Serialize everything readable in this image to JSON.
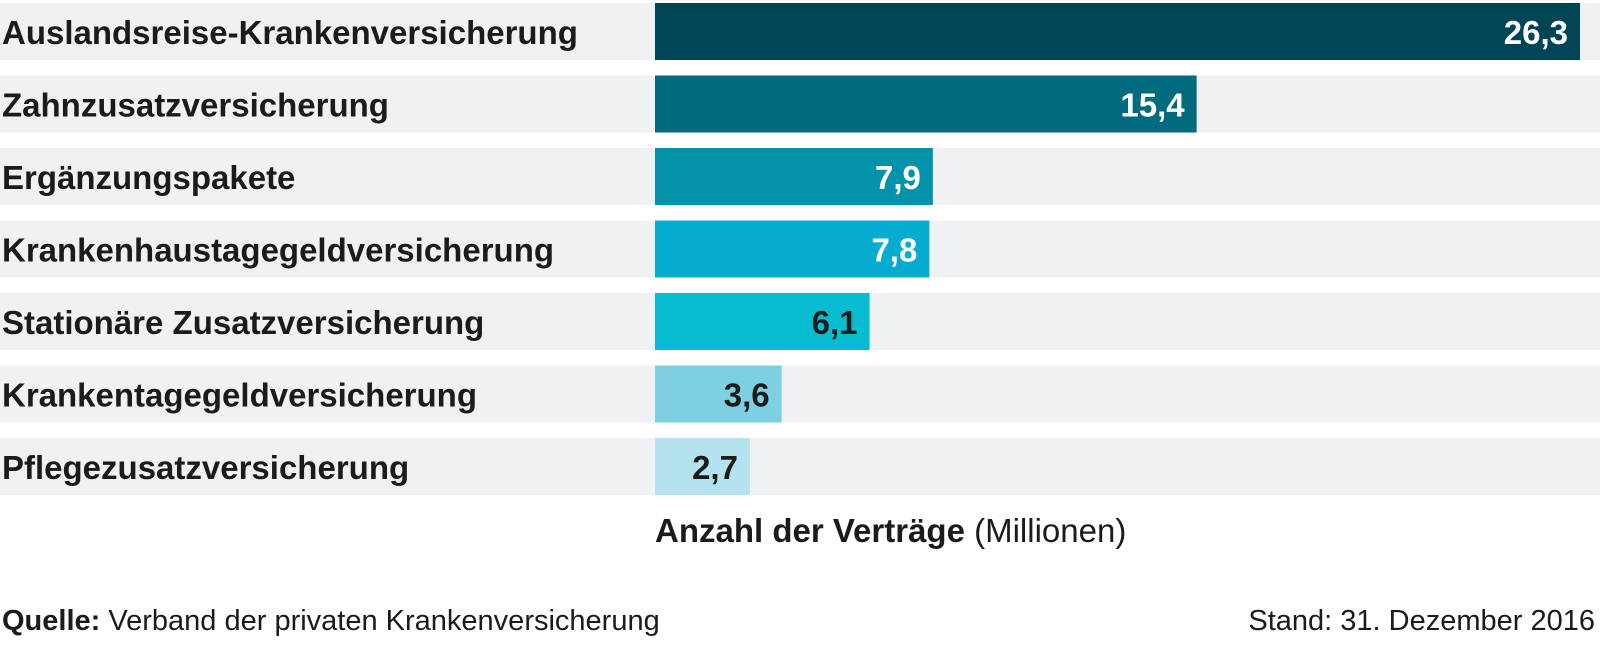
{
  "chart_data": {
    "type": "bar",
    "orientation": "horizontal",
    "categories": [
      "Auslandsreise-Krankenversicherung",
      "Zahnzusatzversicherung",
      "Ergänzungspakete",
      "Krankenhaustagegeldversicherung",
      "Stationäre Zusatzversicherung",
      "Krankentagegeldversicherung",
      "Pflegezusatzversicherung"
    ],
    "values": [
      26.3,
      15.4,
      7.9,
      7.8,
      6.1,
      3.6,
      2.7
    ],
    "value_labels": [
      "26,3",
      "15,4",
      "7,9",
      "7,8",
      "6,1",
      "3,6",
      "2,7"
    ],
    "bar_colors": [
      "#004556",
      "#006a7e",
      "#0392aa",
      "#05acd0",
      "#07bcd0",
      "#7dcfe2",
      "#b4e3ef"
    ],
    "value_label_colors": [
      "#ffffff",
      "#ffffff",
      "#ffffff",
      "#ffffff",
      "#1b1b1b",
      "#1b1b1b",
      "#1b1b1b"
    ],
    "row_background_color": "#f0f1f3",
    "xlim": [
      0,
      26.3
    ],
    "xlabel_bold": "Anzahl der Verträge",
    "xlabel_unit": "(Millionen)",
    "grid": false,
    "legend": "none"
  },
  "footer": {
    "source_label": "Quelle:",
    "source_text": "Verband der privaten Krankenversicherung",
    "date_text": "Stand: 31. Dezember 2016"
  }
}
